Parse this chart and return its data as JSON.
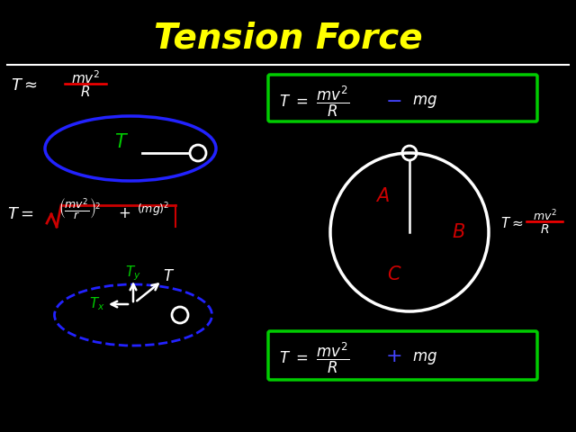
{
  "title": "Tension Force",
  "title_color": "#FFFF00",
  "title_fontsize": 28,
  "bg_color": "#000000",
  "underline_color": "#FFFFFF",
  "box_color": "#00CC00",
  "circle_blue": "#2222FF",
  "circle_white": "#FFFFFF",
  "dashed_blue": "#2222FF",
  "T_label_color": "#00CC00",
  "ABC_color": "#CC0000",
  "sqrt_color": "#CC0000",
  "Tx_Ty_color": "#00CC00",
  "plus_minus_color": "#4444FF",
  "white": "#FFFFFF",
  "red": "#CC0000"
}
